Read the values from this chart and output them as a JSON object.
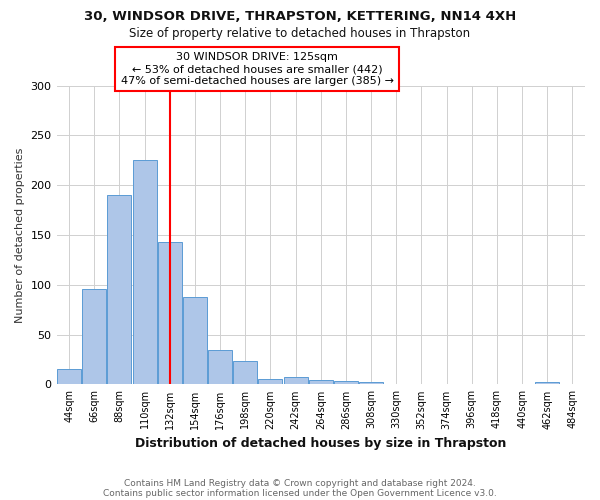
{
  "title1": "30, WINDSOR DRIVE, THRAPSTON, KETTERING, NN14 4XH",
  "title2": "Size of property relative to detached houses in Thrapston",
  "xlabel": "Distribution of detached houses by size in Thrapston",
  "ylabel": "Number of detached properties",
  "footnote1": "Contains HM Land Registry data © Crown copyright and database right 2024.",
  "footnote2": "Contains public sector information licensed under the Open Government Licence v3.0.",
  "annotation_line1": "30 WINDSOR DRIVE: 125sqm",
  "annotation_line2": "← 53% of detached houses are smaller (442)",
  "annotation_line3": "47% of semi-detached houses are larger (385) →",
  "categories": [
    44,
    66,
    88,
    110,
    132,
    154,
    176,
    198,
    220,
    242,
    264,
    286,
    308,
    330,
    352,
    374,
    396,
    418,
    440,
    462,
    484
  ],
  "values": [
    15,
    96,
    190,
    225,
    143,
    88,
    35,
    24,
    5,
    7,
    4,
    3,
    2,
    0,
    0,
    0,
    0,
    0,
    0,
    2,
    0
  ],
  "bar_color": "#aec6e8",
  "bar_edge_color": "#5b9bd5",
  "red_line_x": 132,
  "ylim": [
    0,
    300
  ],
  "yticks": [
    0,
    50,
    100,
    150,
    200,
    250,
    300
  ],
  "background_color": "#ffffff",
  "grid_color": "#d0d0d0",
  "title1_fontsize": 9.5,
  "title2_fontsize": 8.5,
  "ylabel_fontsize": 8,
  "xlabel_fontsize": 9,
  "tick_fontsize": 7,
  "footnote_fontsize": 6.5
}
